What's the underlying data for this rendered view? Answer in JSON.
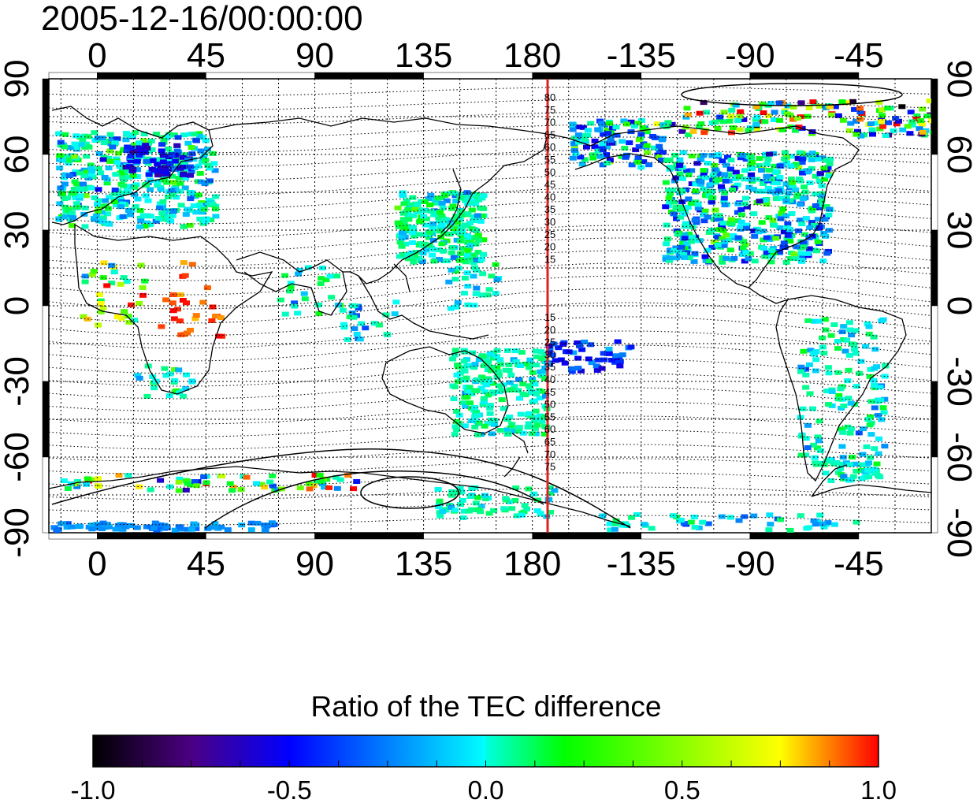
{
  "map": {
    "timestamp": "2005-12-16/00:00:00",
    "top_lon_labels": [
      "0",
      "45",
      "90",
      "135",
      "180",
      "-135",
      "-90",
      "-45"
    ],
    "bottom_lon_labels": [
      "0",
      "45",
      "90",
      "135",
      "180",
      "-135",
      "-90",
      "-45"
    ],
    "left_lat_labels": [
      "90",
      "60",
      "30",
      "0",
      "-30",
      "-60",
      "-90"
    ],
    "right_lat_labels": [
      "90",
      "60",
      "30",
      "0",
      "-30",
      "-60",
      "-90"
    ],
    "meridian_lon": 180,
    "meridian_color": "#e02020",
    "contour_labels_north": [
      "80",
      "75",
      "70",
      "65",
      "60",
      "55",
      "50",
      "45",
      "40",
      "35",
      "30",
      "25",
      "20",
      "15"
    ],
    "contour_labels_south": [
      "15",
      "20",
      "25",
      "30",
      "35",
      "40",
      "45",
      "50",
      "55",
      "60",
      "65",
      "70",
      "75"
    ],
    "lon_range": [
      -20,
      345
    ],
    "lat_range": [
      -90,
      90
    ]
  },
  "colorbar": {
    "title": "Ratio of the TEC difference",
    "ticks": [
      "-1.0",
      "-0.5",
      "0.0",
      "0.5",
      "1.0"
    ],
    "range": [
      -1.0,
      1.0
    ],
    "colormap": [
      "#000000",
      "#4b0082",
      "#0000ff",
      "#00ffff",
      "#00ff00",
      "#ffff00",
      "#ff0000"
    ]
  }
}
